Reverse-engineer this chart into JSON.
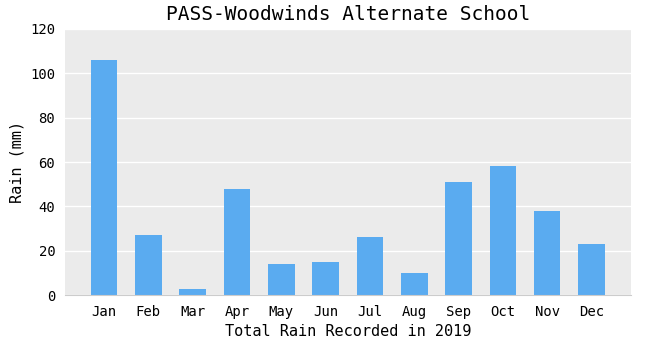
{
  "title": "PASS-Woodwinds Alternate School",
  "xlabel": "Total Rain Recorded in 2019",
  "ylabel": "Rain (mm)",
  "months": [
    "Jan",
    "Feb",
    "Mar",
    "Apr",
    "May",
    "Jun",
    "Jul",
    "Aug",
    "Sep",
    "Oct",
    "Nov",
    "Dec"
  ],
  "values": [
    106,
    27,
    3,
    48,
    14,
    15,
    26,
    10,
    51,
    58,
    38,
    23
  ],
  "bar_color": "#5aabf0",
  "ylim": [
    0,
    120
  ],
  "yticks": [
    0,
    20,
    40,
    60,
    80,
    100,
    120
  ],
  "bg_color": "#ebebeb",
  "fig_color": "#ffffff",
  "title_fontsize": 14,
  "label_fontsize": 11,
  "tick_fontsize": 10
}
